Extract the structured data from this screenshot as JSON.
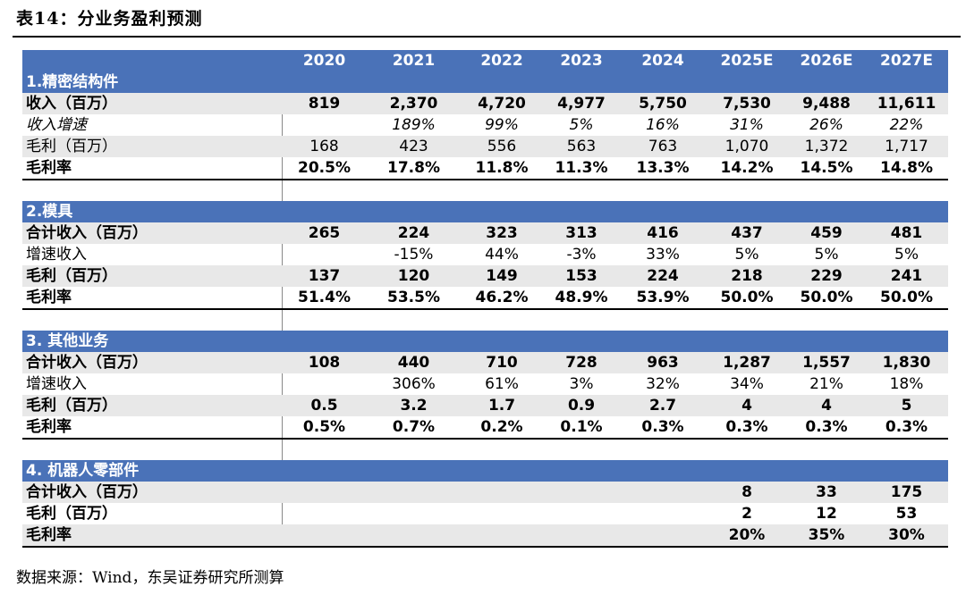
{
  "title": "表14：分业务盈利预测",
  "columns": [
    "2020",
    "2021",
    "2022",
    "2023",
    "2024",
    "2025E",
    "2026E",
    "2027E"
  ],
  "sections": [
    {
      "name": "1.精密结构件",
      "rows": [
        {
          "label": "收入（百万）",
          "style": "bold",
          "values": [
            "819",
            "2,370",
            "4,720",
            "4,977",
            "5,750",
            "7,530",
            "9,488",
            "11,611"
          ]
        },
        {
          "label": "收入增速",
          "style": "italic",
          "values": [
            "",
            "189%",
            "99%",
            "5%",
            "16%",
            "31%",
            "26%",
            "22%"
          ]
        },
        {
          "label": "毛利（百万）",
          "style": "normal",
          "values": [
            "168",
            "423",
            "556",
            "563",
            "763",
            "1,070",
            "1,372",
            "1,717"
          ]
        },
        {
          "label": "毛利率",
          "style": "bold",
          "values": [
            "20.5%",
            "17.8%",
            "11.8%",
            "11.3%",
            "13.3%",
            "14.2%",
            "14.5%",
            "14.8%"
          ]
        }
      ]
    },
    {
      "name": "2.模具",
      "rows": [
        {
          "label": "合计收入（百万）",
          "style": "bold",
          "values": [
            "265",
            "224",
            "323",
            "313",
            "416",
            "437",
            "459",
            "481"
          ]
        },
        {
          "label": "增速收入",
          "style": "normal",
          "values": [
            "",
            "-15%",
            "44%",
            "-3%",
            "33%",
            "5%",
            "5%",
            "5%"
          ]
        },
        {
          "label": "毛利（百万）",
          "style": "bold",
          "values": [
            "137",
            "120",
            "149",
            "153",
            "224",
            "218",
            "229",
            "241"
          ]
        },
        {
          "label": "毛利率",
          "style": "bold",
          "values": [
            "51.4%",
            "53.5%",
            "46.2%",
            "48.9%",
            "53.9%",
            "50.0%",
            "50.0%",
            "50.0%"
          ]
        }
      ]
    },
    {
      "name": "3. 其他业务",
      "rows": [
        {
          "label": "合计收入（百万）",
          "style": "bold",
          "values": [
            "108",
            "440",
            "710",
            "728",
            "963",
            "1,287",
            "1,557",
            "1,830"
          ]
        },
        {
          "label": "增速收入",
          "style": "normal",
          "values": [
            "",
            "306%",
            "61%",
            "3%",
            "32%",
            "34%",
            "21%",
            "18%"
          ]
        },
        {
          "label": "毛利（百万）",
          "style": "bold",
          "values": [
            "0.5",
            "3.2",
            "1.7",
            "0.9",
            "2.7",
            "4",
            "4",
            "5"
          ]
        },
        {
          "label": "毛利率",
          "style": "bold",
          "values": [
            "0.5%",
            "0.7%",
            "0.2%",
            "0.1%",
            "0.3%",
            "0.3%",
            "0.3%",
            "0.3%"
          ]
        }
      ]
    },
    {
      "name": "4. 机器人零部件",
      "rows": [
        {
          "label": "合计收入（百万）",
          "style": "bold",
          "values": [
            "",
            "",
            "",
            "",
            "",
            "8",
            "33",
            "175"
          ]
        },
        {
          "label": "毛利（百万）",
          "style": "bold",
          "values": [
            "",
            "",
            "",
            "",
            "",
            "2",
            "12",
            "53"
          ]
        },
        {
          "label": "毛利率",
          "style": "bold",
          "values": [
            "",
            "",
            "",
            "",
            "",
            "20%",
            "35%",
            "30%"
          ]
        }
      ]
    }
  ],
  "footer": "数据来源：Wind，东吴证券研究所测算"
}
